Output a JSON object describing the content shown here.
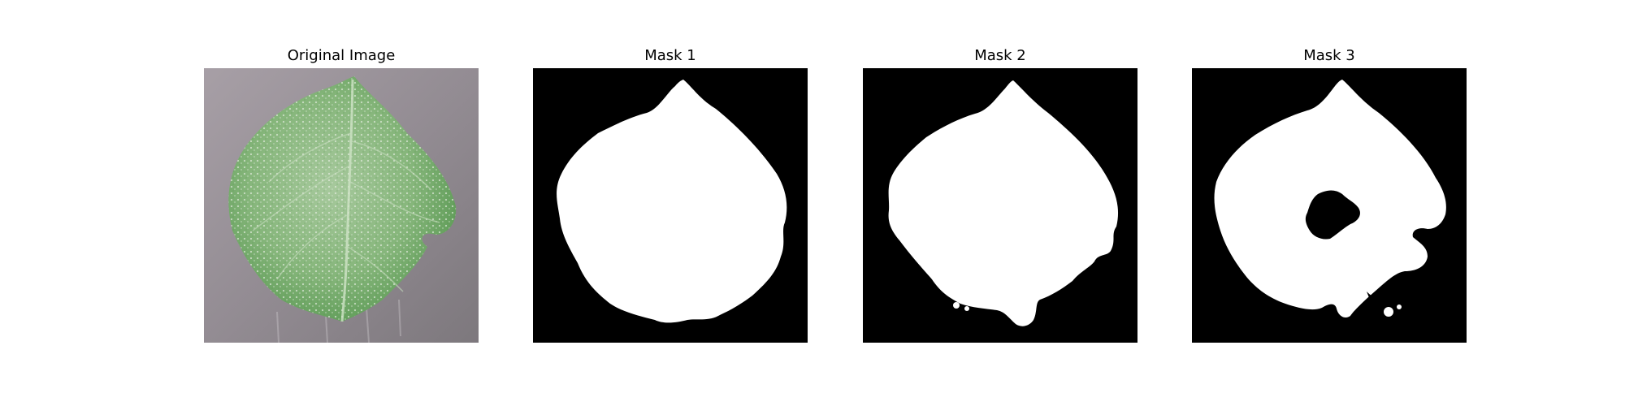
{
  "figure": {
    "panels": [
      {
        "title": "Original Image",
        "kind": "photo",
        "subject": "leaf"
      },
      {
        "title": "Mask 1",
        "kind": "mask"
      },
      {
        "title": "Mask 2",
        "kind": "mask"
      },
      {
        "title": "Mask 3",
        "kind": "mask"
      }
    ]
  },
  "colors": {
    "mask_background": "#000000",
    "mask_foreground": "#ffffff",
    "leaf_green": "#7fb274",
    "surface_gray": "#9a9399"
  }
}
